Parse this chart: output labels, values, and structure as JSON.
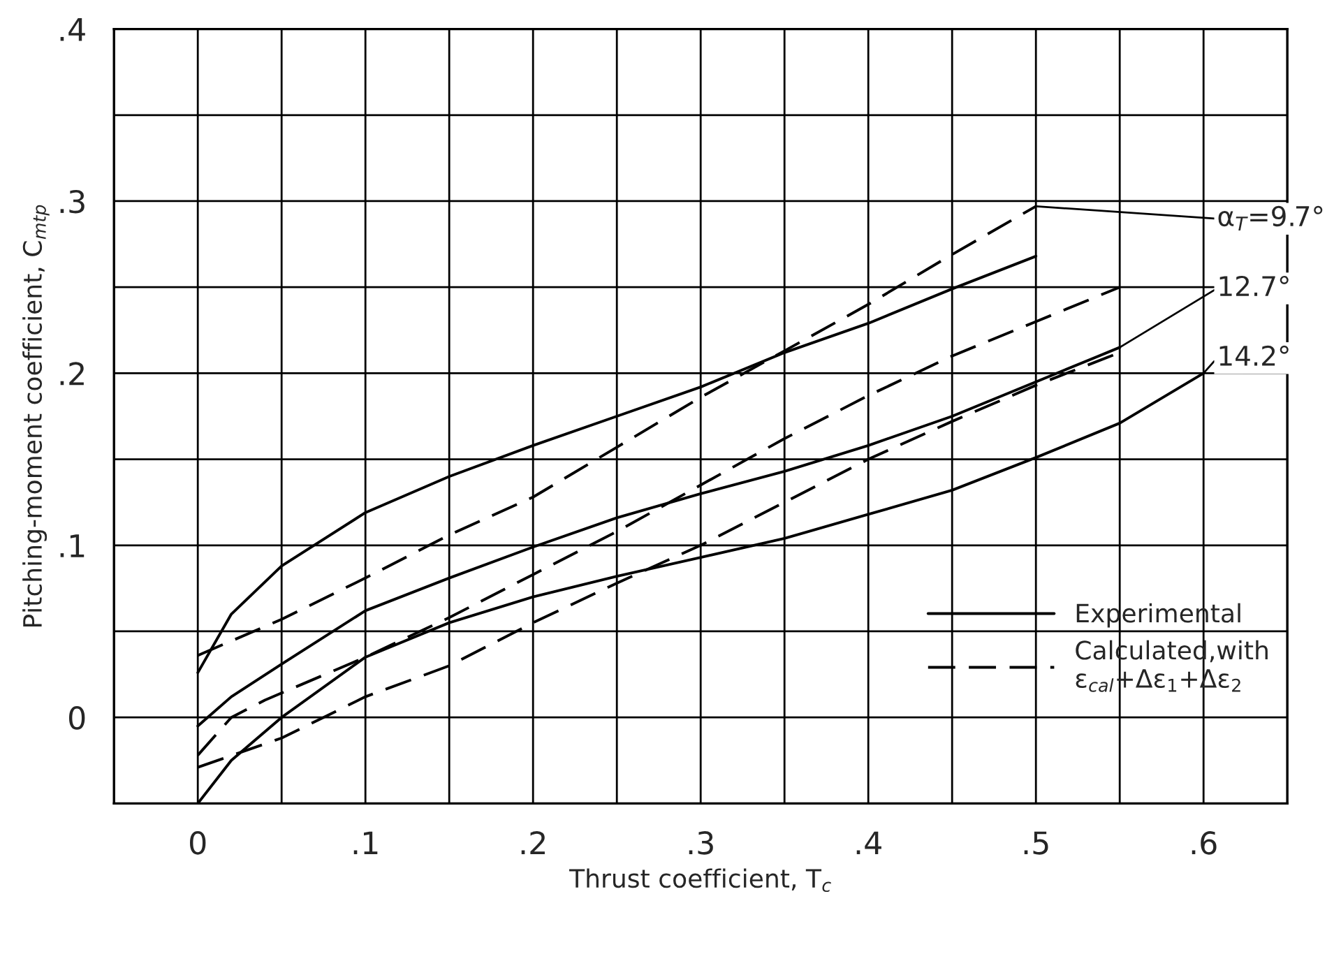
{
  "chart_data": {
    "type": "line",
    "xlabel": "Thrust coefficient, T$_{c}$",
    "ylabel": "Pitching-moment coefficient, C$_{mtp}$",
    "xlim": [
      -0.05,
      0.65
    ],
    "ylim": [
      -0.05,
      0.4
    ],
    "xticks": [
      {
        "value": -0.05,
        "label": null
      },
      0,
      {
        "value": 0.05,
        "label": null
      },
      {
        "value": 0.1,
        "label": ".1"
      },
      {
        "value": 0.15,
        "label": null
      },
      {
        "value": 0.2,
        "label": ".2"
      },
      {
        "value": 0.25,
        "label": null
      },
      {
        "value": 0.3,
        "label": ".3"
      },
      {
        "value": 0.35,
        "label": null
      },
      {
        "value": 0.4,
        "label": ".4"
      },
      {
        "value": 0.45,
        "label": null
      },
      {
        "value": 0.5,
        "label": ".5"
      },
      {
        "value": 0.55,
        "label": null
      },
      {
        "value": 0.6,
        "label": ".6"
      },
      {
        "value": 0.65,
        "label": null
      }
    ],
    "yticks": [
      {
        "value": -0.05,
        "label": null
      },
      0,
      {
        "value": 0.05,
        "label": null
      },
      {
        "value": 0.1,
        "label": ".1"
      },
      {
        "value": 0.15,
        "label": null
      },
      {
        "value": 0.2,
        "label": ".2"
      },
      {
        "value": 0.25,
        "label": null
      },
      {
        "value": 0.3,
        "label": ".3"
      },
      {
        "value": 0.35,
        "label": null
      },
      {
        "value": 0.4,
        "label": ".4"
      }
    ],
    "grid": true,
    "legend": "lower right",
    "series": [
      {
        "name": "Experimental",
        "color": "#000000",
        "line_style": "solid",
        "x": [
          0,
          0.02,
          0.05,
          0.1,
          0.15,
          0.2,
          0.25,
          0.3,
          0.35,
          0.4,
          0.45,
          0.5
        ],
        "values": [
          0.026,
          0.06,
          0.088,
          0.119,
          0.14,
          0.158,
          0.175,
          0.192,
          0.212,
          0.229,
          0.249,
          0.268
        ]
      },
      {
        "name": "Calculated,with\nε$_{cal}$+Δε$_{1}$+Δε$_{2}$",
        "color": "#000000",
        "line_style": "dashed",
        "x": [
          0,
          0.05,
          0.1,
          0.15,
          0.2,
          0.25,
          0.3,
          0.35,
          0.4,
          0.45,
          0.5
        ],
        "values": [
          0.036,
          0.057,
          0.081,
          0.106,
          0.128,
          0.157,
          0.186,
          0.213,
          0.24,
          0.269,
          0.297
        ]
      },
      {
        "color": "#000000",
        "line_style": "solid",
        "x": [
          0,
          0.02,
          0.05,
          0.1,
          0.15,
          0.2,
          0.25,
          0.3,
          0.35,
          0.4,
          0.45,
          0.5,
          0.55
        ],
        "values": [
          -0.005,
          0.012,
          0.031,
          0.062,
          0.081,
          0.099,
          0.116,
          0.13,
          0.143,
          0.158,
          0.175,
          0.195,
          0.215
        ]
      },
      {
        "color": "#000000",
        "line_style": "dashed",
        "x": [
          0,
          0.02,
          0.04,
          0.1,
          0.15,
          0.2,
          0.25,
          0.3,
          0.35,
          0.4,
          0.45,
          0.5,
          0.55
        ],
        "values": [
          -0.022,
          0.0,
          0.01,
          0.035,
          0.058,
          0.083,
          0.108,
          0.135,
          0.162,
          0.187,
          0.21,
          0.23,
          0.25
        ]
      },
      {
        "color": "#000000",
        "line_style": "solid",
        "x": [
          0,
          0.02,
          0.05,
          0.1,
          0.15,
          0.2,
          0.25,
          0.3,
          0.35,
          0.4,
          0.45,
          0.5,
          0.55,
          0.6
        ],
        "values": [
          -0.05,
          -0.025,
          0.0,
          0.035,
          0.055,
          0.07,
          0.082,
          0.093,
          0.104,
          0.118,
          0.132,
          0.151,
          0.171,
          0.2
        ]
      },
      {
        "color": "#000000",
        "line_style": "dashed",
        "x": [
          0,
          0.05,
          0.075,
          0.1,
          0.15,
          0.2,
          0.25,
          0.3,
          0.35,
          0.4,
          0.45,
          0.5,
          0.55
        ],
        "values": [
          -0.029,
          -0.012,
          0.0,
          0.012,
          0.03,
          0.055,
          0.078,
          0.1,
          0.125,
          0.15,
          0.172,
          0.193,
          0.212
        ]
      }
    ],
    "annotations": [
      {
        "text": "α$_{T}$=9.7°",
        "x": 0.5,
        "y": 0.297
      },
      {
        "text": "12.7°",
        "x": 0.55,
        "y": 0.215
      },
      {
        "text": "14.2°",
        "x": 0.6,
        "y": 0.2
      }
    ]
  }
}
